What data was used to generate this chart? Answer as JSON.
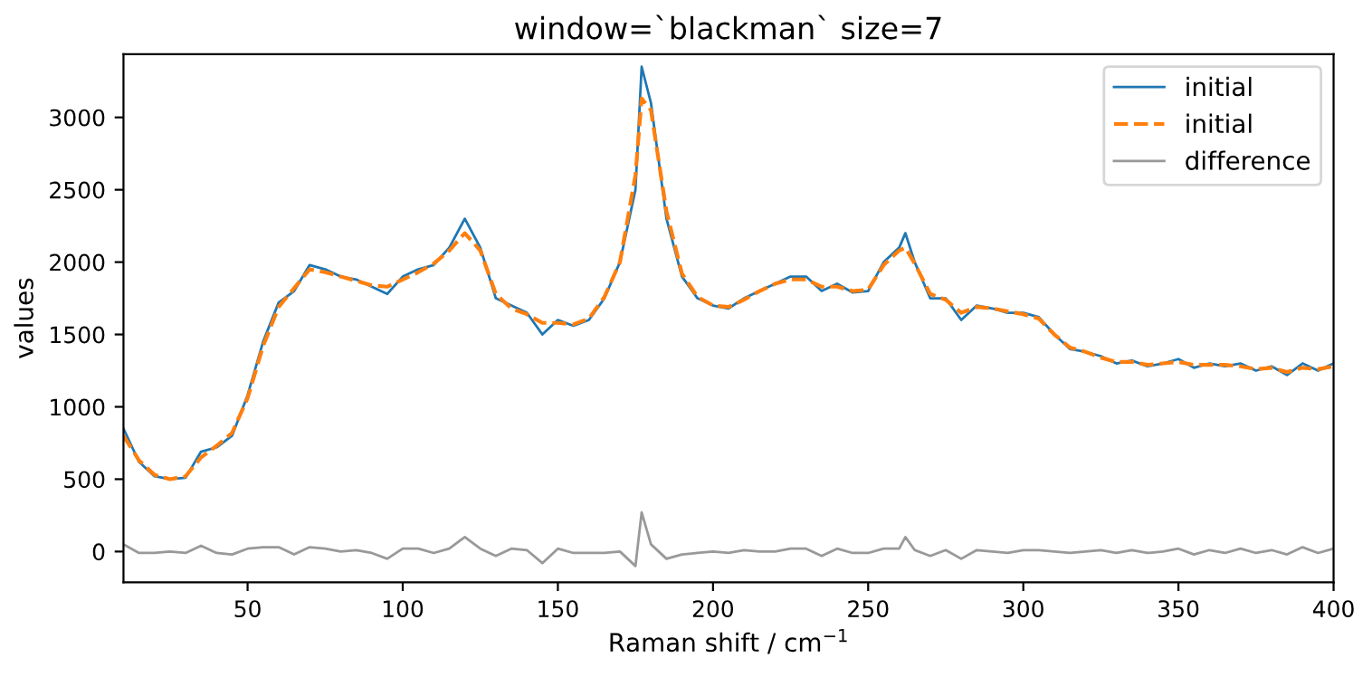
{
  "chart_data": {
    "type": "line",
    "title": "window=`blackman` size=7",
    "xlabel": "Raman shift / cm$^{−1}$",
    "ylabel": "values",
    "x": [
      10,
      15,
      20,
      25,
      30,
      35,
      40,
      45,
      50,
      55,
      60,
      65,
      70,
      75,
      80,
      85,
      90,
      95,
      100,
      105,
      110,
      115,
      120,
      125,
      130,
      135,
      140,
      145,
      150,
      155,
      160,
      165,
      170,
      175,
      177,
      180,
      185,
      190,
      195,
      200,
      205,
      210,
      215,
      220,
      225,
      230,
      235,
      240,
      245,
      250,
      255,
      260,
      262,
      265,
      270,
      275,
      280,
      285,
      290,
      295,
      300,
      305,
      310,
      315,
      320,
      325,
      330,
      335,
      340,
      345,
      350,
      355,
      360,
      365,
      370,
      375,
      380,
      385,
      390,
      395,
      400
    ],
    "series": [
      {
        "name": "initial",
        "color": "#1f77b4",
        "line_style": "solid",
        "values": [
          850,
          620,
          520,
          500,
          510,
          690,
          720,
          800,
          1080,
          1450,
          1720,
          1800,
          1980,
          1950,
          1900,
          1880,
          1830,
          1780,
          1900,
          1950,
          1980,
          2100,
          2300,
          2100,
          1750,
          1700,
          1650,
          1500,
          1600,
          1560,
          1600,
          1750,
          2000,
          2500,
          3350,
          3100,
          2300,
          1900,
          1750,
          1700,
          1680,
          1750,
          1800,
          1850,
          1900,
          1900,
          1800,
          1850,
          1790,
          1800,
          2000,
          2100,
          2200,
          2000,
          1750,
          1750,
          1600,
          1700,
          1680,
          1650,
          1650,
          1620,
          1500,
          1400,
          1380,
          1350,
          1300,
          1320,
          1280,
          1300,
          1330,
          1270,
          1300,
          1280,
          1300,
          1250,
          1280,
          1220,
          1300,
          1250,
          1300
        ]
      },
      {
        "name": "initial",
        "color": "#ff7f0e",
        "line_style": "dashed",
        "values": [
          800,
          630,
          530,
          500,
          520,
          650,
          730,
          820,
          1060,
          1420,
          1690,
          1820,
          1950,
          1930,
          1900,
          1870,
          1840,
          1830,
          1880,
          1930,
          1990,
          2080,
          2200,
          2080,
          1780,
          1680,
          1640,
          1580,
          1580,
          1570,
          1610,
          1760,
          2000,
          2600,
          3130,
          3050,
          2350,
          1920,
          1760,
          1700,
          1690,
          1740,
          1800,
          1850,
          1880,
          1880,
          1830,
          1830,
          1800,
          1810,
          1980,
          2080,
          2100,
          1990,
          1780,
          1740,
          1650,
          1690,
          1680,
          1660,
          1640,
          1610,
          1500,
          1410,
          1380,
          1340,
          1310,
          1310,
          1290,
          1300,
          1310,
          1290,
          1290,
          1290,
          1280,
          1260,
          1270,
          1240,
          1270,
          1260,
          1280
        ]
      },
      {
        "name": "difference",
        "color": "#999999",
        "line_style": "solid",
        "values": [
          50,
          -10,
          -10,
          0,
          -10,
          40,
          -10,
          -20,
          20,
          30,
          30,
          -20,
          30,
          20,
          0,
          10,
          -10,
          -50,
          20,
          20,
          -10,
          20,
          100,
          20,
          -30,
          20,
          10,
          -80,
          20,
          -10,
          -10,
          -10,
          0,
          -100,
          270,
          50,
          -50,
          -20,
          -10,
          0,
          -10,
          10,
          0,
          0,
          20,
          20,
          -30,
          20,
          -10,
          -10,
          20,
          20,
          100,
          10,
          -30,
          10,
          -50,
          10,
          0,
          -10,
          10,
          10,
          0,
          -10,
          0,
          10,
          -10,
          10,
          -10,
          0,
          20,
          -20,
          10,
          -10,
          20,
          -10,
          10,
          -20,
          30,
          -10,
          20
        ]
      }
    ],
    "xlim": [
      10,
      400
    ],
    "xticks": [
      50,
      100,
      150,
      200,
      250,
      300,
      350,
      400
    ],
    "ylim": [
      -212,
      3437
    ],
    "yticks": [
      0,
      500,
      1000,
      1500,
      2000,
      2500,
      3000
    ],
    "grid": false,
    "legend": "top right"
  }
}
